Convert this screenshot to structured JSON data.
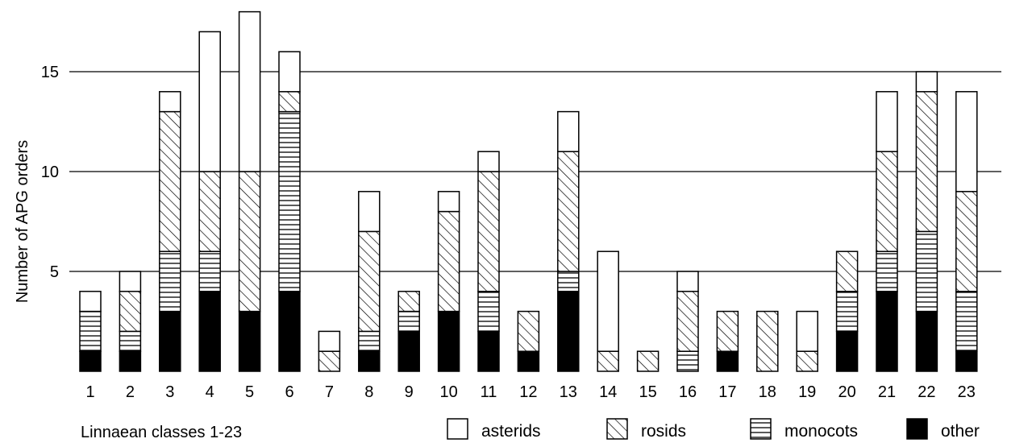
{
  "chart_data": {
    "type": "bar",
    "stacked": true,
    "xlabel": "Linnaean classes 1-23",
    "ylabel": "Number of APG orders",
    "ylim": [
      0,
      18
    ],
    "yticks": [
      5,
      10,
      15
    ],
    "grid": "horizontal",
    "categories": [
      "1",
      "2",
      "3",
      "4",
      "5",
      "6",
      "7",
      "8",
      "9",
      "10",
      "11",
      "12",
      "13",
      "14",
      "15",
      "16",
      "17",
      "18",
      "19",
      "20",
      "21",
      "22",
      "23"
    ],
    "series": [
      {
        "name": "other",
        "pattern": "solid-black",
        "values": [
          1,
          1,
          3,
          4,
          3,
          4,
          0,
          1,
          2,
          3,
          2,
          1,
          4,
          0,
          0,
          0,
          1,
          0,
          0,
          2,
          4,
          3,
          1
        ]
      },
      {
        "name": "monocots",
        "pattern": "horizontal-lines",
        "values": [
          2,
          1,
          3,
          2,
          0,
          9,
          0,
          1,
          1,
          0,
          2,
          0,
          1,
          0,
          0,
          1,
          0,
          0,
          0,
          2,
          2,
          4,
          3
        ]
      },
      {
        "name": "rosids",
        "pattern": "diagonal-hatch",
        "values": [
          0,
          2,
          7,
          4,
          7,
          1,
          1,
          5,
          1,
          5,
          6,
          2,
          6,
          1,
          1,
          3,
          2,
          3,
          1,
          2,
          5,
          7,
          5
        ]
      },
      {
        "name": "asterids",
        "pattern": "white",
        "values": [
          1,
          1,
          1,
          7,
          8,
          2,
          1,
          2,
          0,
          1,
          1,
          0,
          2,
          5,
          0,
          1,
          0,
          0,
          2,
          0,
          3,
          1,
          5
        ]
      }
    ],
    "legend": {
      "placement": "bottom-right",
      "order": [
        "asterids",
        "rosids",
        "monocots",
        "other"
      ]
    }
  }
}
